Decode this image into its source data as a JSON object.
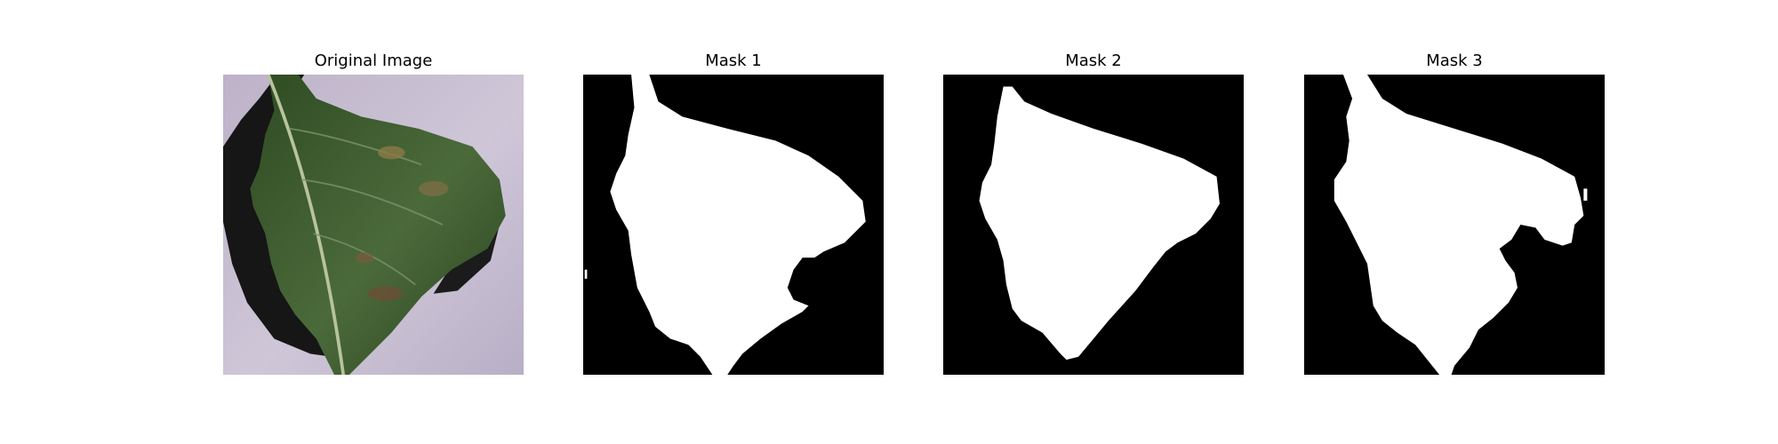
{
  "panels": [
    {
      "title": "Original Image"
    },
    {
      "title": "Mask 1"
    },
    {
      "title": "Mask 2"
    },
    {
      "title": "Mask 3"
    }
  ],
  "colors": {
    "background": "#c9c0d2",
    "leaf_dark": "#2f4f27",
    "leaf_mid": "#4d6d3d",
    "shadow": "#111111",
    "mask_bg": "#000000",
    "mask_fg": "#ffffff"
  }
}
